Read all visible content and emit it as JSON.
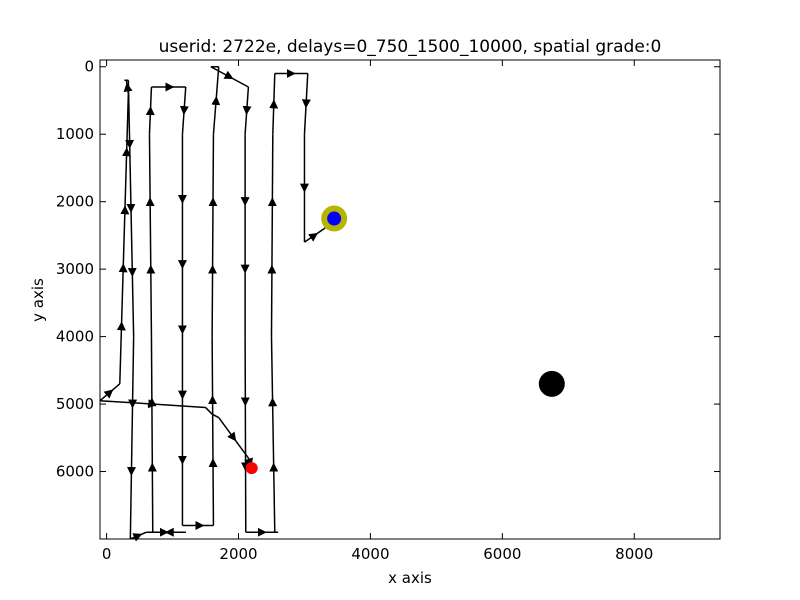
{
  "chart_data": {
    "type": "line",
    "title": "userid: 2722e, delays=0_750_1500_10000, spatial grade:0",
    "xlabel": "x axis",
    "ylabel": "y axis",
    "xlim": [
      -100,
      9300
    ],
    "ylim": [
      7000,
      -100
    ],
    "y_inverted": true,
    "xticks": [
      0,
      2000,
      4000,
      6000,
      8000
    ],
    "yticks": [
      0,
      1000,
      2000,
      3000,
      4000,
      5000,
      6000
    ],
    "grid": false,
    "series": [
      {
        "style": "black line with triangle arrowheads",
        "color": "#000000",
        "x": [
          -100,
          200,
          330,
          300,
          270,
          330,
          410,
          360,
          600,
          1150,
          1200,
          700,
          680,
          650,
          680,
          720,
          1200,
          1150,
          1150,
          1250,
          1580,
          1620,
          1600,
          1620,
          1700,
          1580,
          2150,
          2100,
          2100,
          2110,
          2120,
          2600,
          2550,
          2500,
          2520,
          2550,
          3050,
          3050,
          3000,
          3000,
          3300,
          3450
        ],
        "y": [
          4950,
          4700,
          400,
          200,
          200,
          200,
          4000,
          7000,
          6900,
          6900,
          6900,
          6900,
          4000,
          1000,
          300,
          300,
          300,
          1000,
          6800,
          6800,
          6800,
          6800,
          4000,
          1000,
          0,
          0,
          300,
          1000,
          4000,
          6900,
          6900,
          6900,
          6900,
          4000,
          1000,
          100,
          100,
          100,
          1000,
          2600,
          2400,
          2250
        ]
      },
      {
        "style": "return path",
        "color": "#000000",
        "x": [
          -100,
          1500,
          1600,
          1700,
          2150,
          2200
        ],
        "y": [
          4950,
          5050,
          5150,
          5200,
          5800,
          5950
        ]
      }
    ],
    "markers": [
      {
        "name": "start",
        "x": 2200,
        "y": 5950,
        "color": "#ff0000",
        "size": "small"
      },
      {
        "name": "target",
        "x": 3450,
        "y": 2250,
        "color": "#0000ff",
        "ring_color": "#b5b500",
        "size": "medium"
      },
      {
        "name": "other",
        "x": 6750,
        "y": 4700,
        "color": "#000000",
        "size": "large"
      }
    ]
  }
}
